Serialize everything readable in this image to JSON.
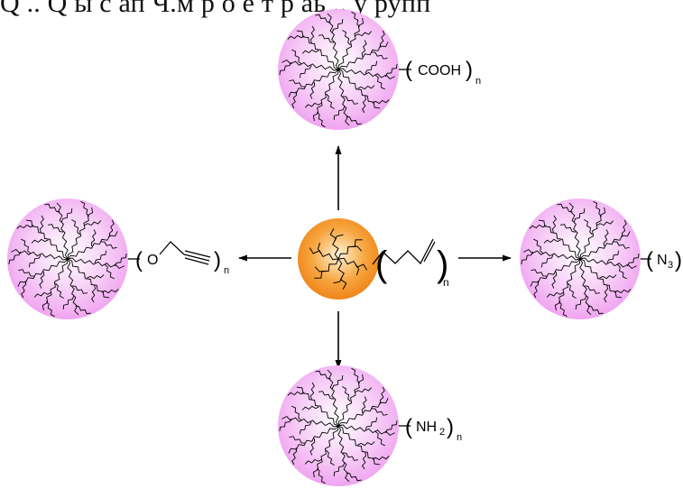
{
  "header_fragment": "Q  .. Q  ы с ап Ч.м  р  о е т р аь ..  у рупп",
  "colors": {
    "core_orange": "#f08a1a",
    "core_orange_light": "#fff2d0",
    "shell_pink": "#f2a7f2",
    "shell_pink_light": "#ffffff",
    "line": "#000000"
  },
  "center": {
    "chain": {
      "open": "(",
      "close": ")",
      "subscript": "n"
    }
  },
  "products": [
    {
      "id": "top",
      "label_open": "(",
      "label_main": "COOH",
      "label_sub": "",
      "label_close": ")",
      "label_n": "n"
    },
    {
      "id": "left",
      "label_open": "(",
      "label_main": "O",
      "label_sub": "",
      "label_close": ")",
      "label_n": "n"
    },
    {
      "id": "right",
      "label_open": "(",
      "label_main": "N",
      "label_sub": "3",
      "label_close": ")",
      "label_n": ""
    },
    {
      "id": "bottom",
      "label_open": "(",
      "label_main": "NH",
      "label_sub": "2",
      "label_close": ")",
      "label_n": "n"
    }
  ]
}
